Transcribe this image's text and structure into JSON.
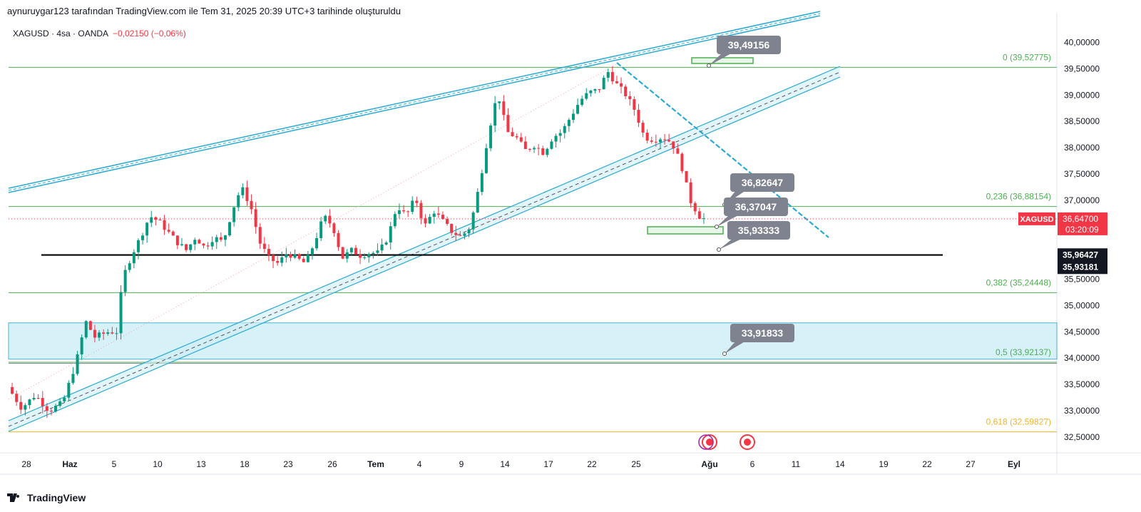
{
  "header": {
    "text": "aynuruygar123 tarafından TradingView.com ile Tem 31, 2025 20:39 UTC+3 tarihinde oluşturuldu"
  },
  "symbol": {
    "text": "XAGUSD · 4sa · OANDA",
    "change": "−0,02150 (−0,06%)"
  },
  "branding": {
    "logo_text": "TradingView"
  },
  "colors": {
    "up": "#089981",
    "down": "#f23645",
    "channel": "#2aa9d2",
    "fib_green": "#4caf50",
    "fib_gold": "#f0b429",
    "black_line": "#000000",
    "callout": "#7f838f"
  },
  "chart_data": {
    "type": "candlestick",
    "symbol": "XAGUSD",
    "timeframe": "4sa",
    "ylim": [
      32.2,
      40.4
    ],
    "y_ticks": [
      "32,50000",
      "33,00000",
      "33,50000",
      "34,00000",
      "34,50000",
      "35,00000",
      "35,50000",
      "36,00000",
      "36,50000",
      "37,00000",
      "37,50000",
      "38,00000",
      "38,50000",
      "39,00000",
      "39,50000",
      "40,00000"
    ],
    "x_ticks": [
      "28",
      "Haz",
      "5",
      "10",
      "13",
      "18",
      "23",
      "26",
      "Tem",
      "4",
      "9",
      "14",
      "17",
      "22",
      "25",
      "Ağu",
      "6",
      "11",
      "14",
      "19",
      "22",
      "27",
      "Eyl"
    ],
    "price_path": [
      {
        "t": 0,
        "p": 33.45
      },
      {
        "t": 3,
        "p": 33.05
      },
      {
        "t": 6,
        "p": 33.3
      },
      {
        "t": 9,
        "p": 33.0
      },
      {
        "t": 12,
        "p": 33.15
      },
      {
        "t": 15,
        "p": 33.95
      },
      {
        "t": 17,
        "p": 34.7
      },
      {
        "t": 19,
        "p": 34.4
      },
      {
        "t": 22,
        "p": 34.5
      },
      {
        "t": 24,
        "p": 34.5
      },
      {
        "t": 25,
        "p": 35.5
      },
      {
        "t": 27,
        "p": 35.95
      },
      {
        "t": 29,
        "p": 36.3
      },
      {
        "t": 31,
        "p": 36.7
      },
      {
        "t": 33,
        "p": 36.6
      },
      {
        "t": 35,
        "p": 36.4
      },
      {
        "t": 37,
        "p": 36.2
      },
      {
        "t": 39,
        "p": 36.05
      },
      {
        "t": 41,
        "p": 36.3
      },
      {
        "t": 43,
        "p": 36.1
      },
      {
        "t": 45,
        "p": 36.3
      },
      {
        "t": 47,
        "p": 36.2
      },
      {
        "t": 49,
        "p": 36.8
      },
      {
        "t": 51,
        "p": 37.25
      },
      {
        "t": 53,
        "p": 36.9
      },
      {
        "t": 55,
        "p": 36.2
      },
      {
        "t": 57,
        "p": 35.9
      },
      {
        "t": 59,
        "p": 35.8
      },
      {
        "t": 61,
        "p": 36.0
      },
      {
        "t": 63,
        "p": 35.9
      },
      {
        "t": 65,
        "p": 35.8
      },
      {
        "t": 67,
        "p": 36.2
      },
      {
        "t": 69,
        "p": 36.7
      },
      {
        "t": 71,
        "p": 36.5
      },
      {
        "t": 73,
        "p": 35.9
      },
      {
        "t": 75,
        "p": 36.05
      },
      {
        "t": 77,
        "p": 35.95
      },
      {
        "t": 79,
        "p": 36.0
      },
      {
        "t": 81,
        "p": 36.0
      },
      {
        "t": 83,
        "p": 36.3
      },
      {
        "t": 85,
        "p": 36.9
      },
      {
        "t": 87,
        "p": 36.7
      },
      {
        "t": 89,
        "p": 37.05
      },
      {
        "t": 91,
        "p": 36.5
      },
      {
        "t": 93,
        "p": 36.8
      },
      {
        "t": 95,
        "p": 36.6
      },
      {
        "t": 97,
        "p": 36.4
      },
      {
        "t": 99,
        "p": 36.3
      },
      {
        "t": 101,
        "p": 36.5
      },
      {
        "t": 103,
        "p": 37.3
      },
      {
        "t": 105,
        "p": 38.3
      },
      {
        "t": 107,
        "p": 39.05
      },
      {
        "t": 109,
        "p": 38.3
      },
      {
        "t": 111,
        "p": 38.2
      },
      {
        "t": 113,
        "p": 37.95
      },
      {
        "t": 115,
        "p": 38.05
      },
      {
        "t": 117,
        "p": 37.9
      },
      {
        "t": 119,
        "p": 38.2
      },
      {
        "t": 121,
        "p": 38.3
      },
      {
        "t": 123,
        "p": 38.6
      },
      {
        "t": 125,
        "p": 38.9
      },
      {
        "t": 127,
        "p": 39.05
      },
      {
        "t": 129,
        "p": 39.1
      },
      {
        "t": 131,
        "p": 39.45
      },
      {
        "t": 133,
        "p": 39.2
      },
      {
        "t": 135,
        "p": 39.0
      },
      {
        "t": 137,
        "p": 38.7
      },
      {
        "t": 139,
        "p": 38.2
      },
      {
        "t": 141,
        "p": 38.15
      },
      {
        "t": 143,
        "p": 38.2
      },
      {
        "t": 145,
        "p": 38.1
      },
      {
        "t": 147,
        "p": 37.7
      },
      {
        "t": 149,
        "p": 37.0
      },
      {
        "t": 151,
        "p": 36.7
      },
      {
        "t": 152,
        "p": 36.65
      }
    ],
    "horizontal_levels": [
      {
        "label": "0 (39,52775)",
        "value": 39.52775,
        "color": "#4caf50"
      },
      {
        "label": "0,236 (36,88154)",
        "value": 36.88154,
        "color": "#4caf50"
      },
      {
        "label": "0,382 (35,24448)",
        "value": 35.24448,
        "color": "#4caf50"
      },
      {
        "label": "0,5 (33,92137)",
        "value": 33.92137,
        "color": "#4caf50"
      },
      {
        "label": "0,618 (32,59827)",
        "value": 32.59827,
        "color": "#f0b429"
      }
    ],
    "support_line": {
      "value": 35.96
    },
    "callouts": [
      {
        "text": "39,49156",
        "value": 39.49156
      },
      {
        "text": "36,82647",
        "value": 36.82647
      },
      {
        "text": "36,37047",
        "value": 36.37047
      },
      {
        "text": "35,93333",
        "value": 35.93333
      },
      {
        "text": "33,91833",
        "value": 33.91833
      }
    ],
    "price_badges": [
      {
        "label": "XAGUSD",
        "value": "36,64700",
        "timer": "03:20:09",
        "price": 36.647,
        "bg": "#f23645"
      },
      {
        "value": "35,96427",
        "price": 35.96427,
        "bg": "#131722"
      },
      {
        "value": "35,93181",
        "price": 35.93181,
        "bg": "#131722"
      }
    ],
    "zone": {
      "from": 33.98,
      "to": 34.67
    }
  }
}
